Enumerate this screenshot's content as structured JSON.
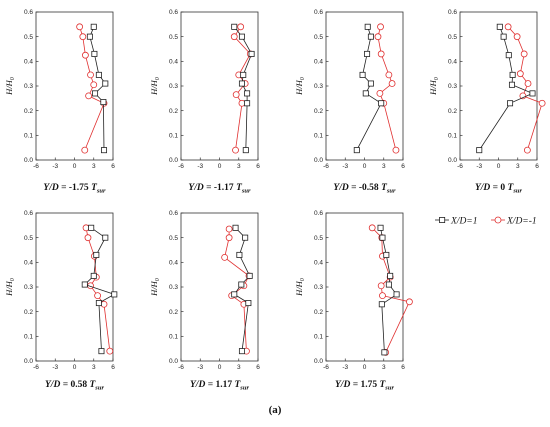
{
  "figure_label": "(a)",
  "colors": {
    "series1": "#222222",
    "series2": "#e03030",
    "axis": "#333333"
  },
  "chart_data": {
    "type": "line",
    "legend_position": "right",
    "shared": {
      "xlim": [
        -6,
        6
      ],
      "ylim": [
        0,
        0.6
      ],
      "xticks": [
        "-6",
        "-3",
        "0",
        "3",
        "6"
      ],
      "yticks": [
        "0.0",
        "0.1",
        "0.2",
        "0.3",
        "0.4",
        "0.5",
        "0.6"
      ],
      "ylabel": "H/H0",
      "series_names": [
        "X/D=1",
        "X/D=-1"
      ],
      "markers": [
        "square",
        "circle"
      ]
    },
    "panels": [
      {
        "title": "Y/D = -1.75 Tsur",
        "series": [
          {
            "name": "X/D=1",
            "y": [
              0.04,
              0.235,
              0.27,
              0.31,
              0.345,
              0.43,
              0.5,
              0.54
            ],
            "x": [
              4.6,
              4.5,
              3.2,
              4.8,
              3.8,
              3.1,
              2.4,
              3.0
            ]
          },
          {
            "name": "X/D=-1",
            "y": [
              0.04,
              0.23,
              0.26,
              0.305,
              0.345,
              0.425,
              0.5,
              0.54
            ],
            "x": [
              1.6,
              4.6,
              2.2,
              3.0,
              2.5,
              1.7,
              1.3,
              0.8
            ]
          }
        ]
      },
      {
        "title": "Y/D = -1.17 Tsur",
        "series": [
          {
            "name": "X/D=1",
            "y": [
              0.04,
              0.23,
              0.27,
              0.31,
              0.345,
              0.43,
              0.5,
              0.54
            ],
            "x": [
              4.1,
              4.3,
              4.3,
              3.5,
              3.7,
              5.0,
              3.5,
              2.3
            ]
          },
          {
            "name": "X/D=-1",
            "y": [
              0.04,
              0.23,
              0.265,
              0.31,
              0.345,
              0.43,
              0.5,
              0.54
            ],
            "x": [
              2.5,
              3.5,
              2.6,
              4.0,
              3.0,
              4.8,
              2.3,
              3.3
            ]
          }
        ]
      },
      {
        "title": "Y/D = -0.58 Tsur",
        "series": [
          {
            "name": "X/D=1",
            "y": [
              0.04,
              0.23,
              0.27,
              0.31,
              0.345,
              0.43,
              0.5,
              0.54
            ],
            "x": [
              -1.2,
              2.6,
              0.2,
              1.0,
              -0.3,
              0.4,
              1.0,
              0.5
            ]
          },
          {
            "name": "X/D=-1",
            "y": [
              0.04,
              0.23,
              0.27,
              0.31,
              0.345,
              0.43,
              0.5,
              0.54
            ],
            "x": [
              4.9,
              3.0,
              2.4,
              4.3,
              3.8,
              2.6,
              2.1,
              2.5
            ]
          }
        ]
      },
      {
        "title": "Y/D = 0 Tsur",
        "series": [
          {
            "name": "X/D=1",
            "y": [
              0.04,
              0.23,
              0.27,
              0.305,
              0.345,
              0.425,
              0.5,
              0.54
            ],
            "x": [
              -3.0,
              1.8,
              5.3,
              2.1,
              2.2,
              1.6,
              0.8,
              0.2
            ]
          },
          {
            "name": "X/D=-1",
            "y": [
              0.04,
              0.23,
              0.26,
              0.31,
              0.35,
              0.43,
              0.5,
              0.54
            ],
            "x": [
              4.5,
              6.8,
              3.8,
              4.6,
              3.4,
              4.0,
              2.9,
              1.5
            ]
          }
        ]
      },
      {
        "title": "Y/D = 0.58 Tsur",
        "series": [
          {
            "name": "X/D=1",
            "y": [
              0.04,
              0.235,
              0.27,
              0.31,
              0.345,
              0.43,
              0.5,
              0.54
            ],
            "x": [
              4.2,
              3.8,
              6.2,
              1.6,
              3.0,
              3.4,
              4.8,
              2.6
            ]
          },
          {
            "name": "X/D=-1",
            "y": [
              0.04,
              0.23,
              0.265,
              0.305,
              0.34,
              0.425,
              0.5,
              0.54
            ],
            "x": [
              5.5,
              4.6,
              3.6,
              2.5,
              3.4,
              3.1,
              2.1,
              1.8
            ]
          }
        ]
      },
      {
        "title": "Y/D = 1.17 Tsur",
        "series": [
          {
            "name": "X/D=1",
            "y": [
              0.04,
              0.235,
              0.27,
              0.31,
              0.345,
              0.43,
              0.5,
              0.54
            ],
            "x": [
              3.5,
              4.5,
              2.3,
              3.4,
              4.7,
              3.1,
              4.0,
              2.5
            ]
          },
          {
            "name": "X/D=-1",
            "y": [
              0.04,
              0.23,
              0.265,
              0.305,
              0.345,
              0.42,
              0.5,
              0.535
            ],
            "x": [
              4.2,
              3.8,
              1.9,
              3.8,
              4.6,
              0.8,
              1.5,
              1.5
            ]
          }
        ]
      },
      {
        "title": "Y/D = 1.75 Tsur",
        "series": [
          {
            "name": "X/D=1",
            "y": [
              0.035,
              0.23,
              0.27,
              0.31,
              0.345,
              0.43,
              0.5,
              0.54
            ],
            "x": [
              3.1,
              2.7,
              5.0,
              3.8,
              4.0,
              3.4,
              2.8,
              2.5
            ]
          },
          {
            "name": "X/D=-1",
            "y": [
              0.035,
              0.24,
              0.265,
              0.305,
              0.34,
              0.425,
              0.5,
              0.54
            ],
            "x": [
              3.3,
              7.0,
              2.8,
              2.6,
              4.0,
              2.8,
              2.7,
              1.2
            ]
          }
        ]
      }
    ]
  }
}
